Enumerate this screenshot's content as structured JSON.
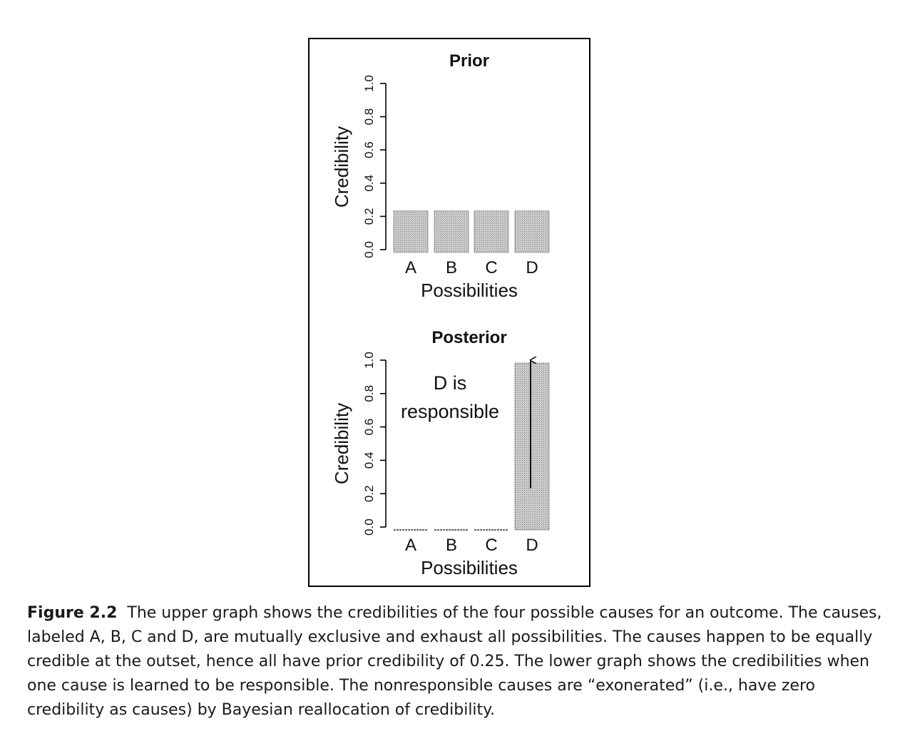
{
  "chart_data": [
    {
      "type": "bar",
      "title": "Prior",
      "xlabel": "Possibilities",
      "ylabel": "Credibility",
      "categories": [
        "A",
        "B",
        "C",
        "D"
      ],
      "values": [
        0.25,
        0.25,
        0.25,
        0.25
      ],
      "ylim": [
        0,
        1
      ],
      "yticks": [
        "0.0",
        "0.2",
        "0.4",
        "0.6",
        "0.8",
        "1.0"
      ],
      "bar_color": "#c8c8c8",
      "grid": false,
      "annotations": []
    },
    {
      "type": "bar",
      "title": "Posterior",
      "xlabel": "Possibilities",
      "ylabel": "Credibility",
      "categories": [
        "A",
        "B",
        "C",
        "D"
      ],
      "values": [
        0,
        0,
        0,
        1
      ],
      "ylim": [
        0,
        1
      ],
      "yticks": [
        "0.0",
        "0.2",
        "0.4",
        "0.6",
        "0.8",
        "1.0"
      ],
      "bar_color": "#c8c8c8",
      "grid": false,
      "annotations": [
        {
          "text_lines": [
            "D is",
            "responsible"
          ]
        },
        {
          "type": "arrow",
          "category": "D",
          "from": 0.25,
          "to": 1.0
        }
      ]
    }
  ],
  "caption": {
    "figure_label": "Figure 2.2",
    "text": "The upper graph shows the credibilities of the four possible causes for an outcome. The causes, labeled A, B, C and D, are mutually exclusive and exhaust all possibilities. The causes happen to be equally credible at the outset, hence all have prior credibility of 0.25. The lower graph shows the credibilities when one cause is learned to be responsible. The nonresponsible causes are “exonerated” (i.e., have zero credibility as causes) by Bayesian reallocation of credibility."
  }
}
